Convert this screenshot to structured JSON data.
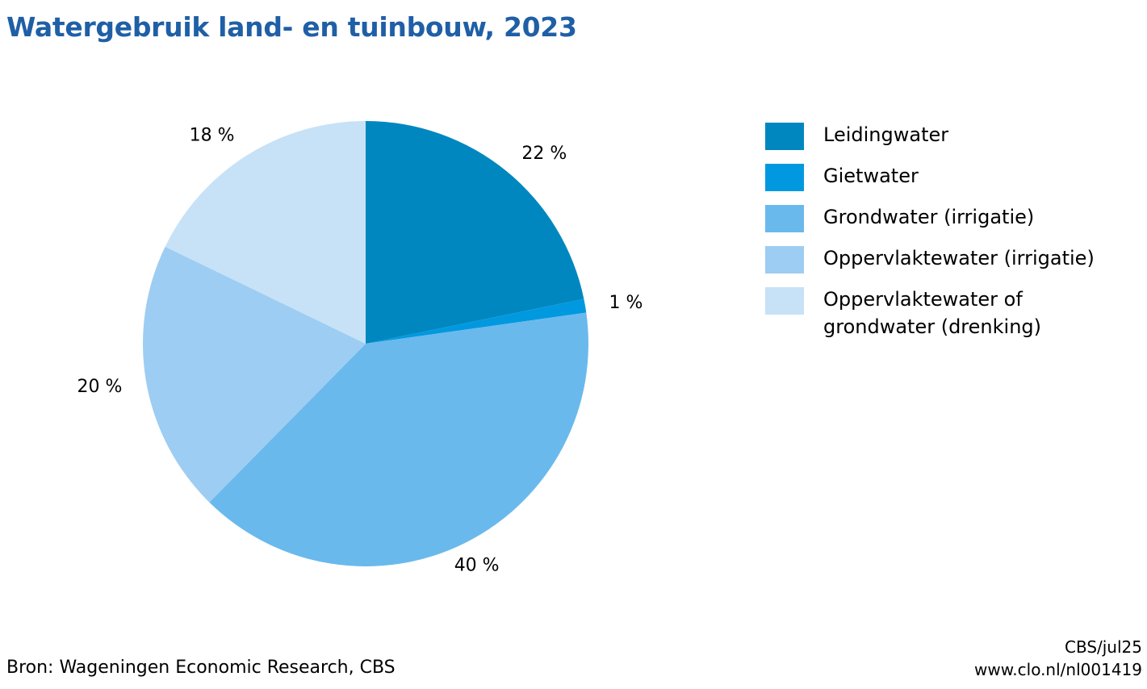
{
  "title": "Watergebruik land- en tuinbouw, 2023",
  "source": "Bron: Wageningen Economic Research, CBS",
  "meta": {
    "line1": "CBS/jul25",
    "line2": "www.clo.nl/nl001419"
  },
  "colors": {
    "title": "#1f5fa6",
    "slices": [
      "#0087c0",
      "#0099e0",
      "#6ab9ec",
      "#9dcdf2",
      "#c7e2f7"
    ]
  },
  "chart_data": {
    "type": "pie",
    "title": "Watergebruik land- en tuinbouw, 2023",
    "categories": [
      "Leidingwater",
      "Gietwater",
      "Grondwater (irrigatie)",
      "Oppervlaktewater (irrigatie)",
      "Oppervlaktewater of grondwater (drenking)"
    ],
    "values": [
      22,
      1,
      40,
      20,
      18
    ],
    "data_labels": [
      "22 %",
      "1 %",
      "40 %",
      "20 %",
      "18 %"
    ],
    "unit": "%",
    "start": "top",
    "direction": "clockwise",
    "legend_position": "right"
  },
  "legend": [
    {
      "label": "Leidingwater"
    },
    {
      "label": "Gietwater"
    },
    {
      "label": "Grondwater (irrigatie)"
    },
    {
      "label": "Oppervlaktewater (irrigatie)"
    },
    {
      "label": "Oppervlaktewater of grondwater (drenking)"
    }
  ]
}
